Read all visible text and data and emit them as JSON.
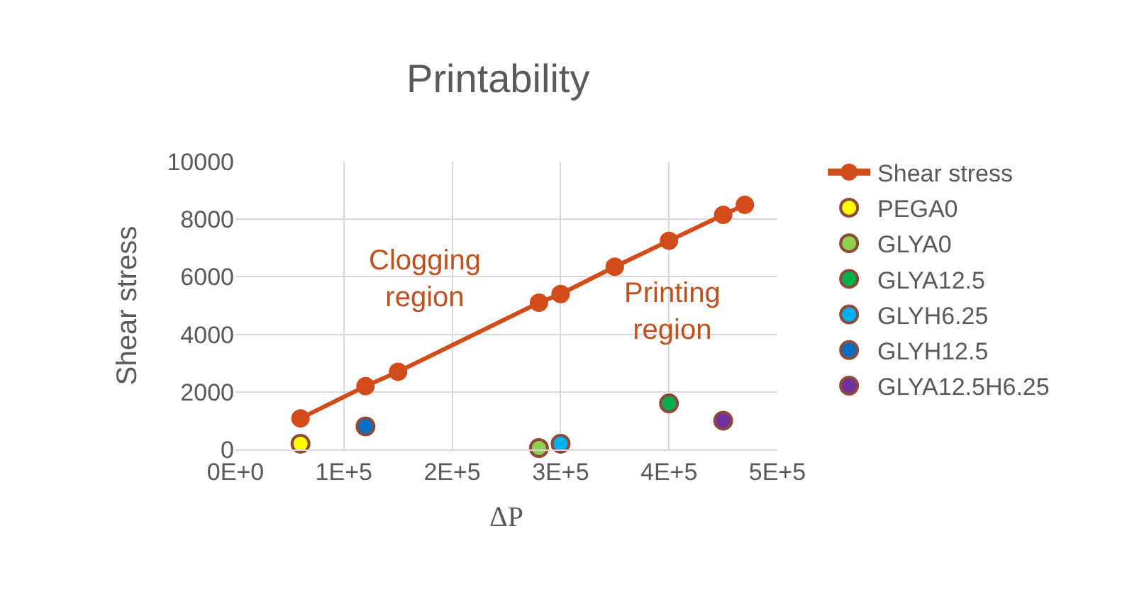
{
  "chart_data": {
    "type": "scatter",
    "title": "Printability",
    "xlabel": "ΔP",
    "ylabel": "Shear stress",
    "xlim": [
      0,
      500000
    ],
    "xticks": [
      {
        "value": 0,
        "label": "0E+0"
      },
      {
        "value": 100000,
        "label": "1E+5"
      },
      {
        "value": 200000,
        "label": "2E+5"
      },
      {
        "value": 300000,
        "label": "3E+5"
      },
      {
        "value": 400000,
        "label": "4E+5"
      },
      {
        "value": 500000,
        "label": "5E+5"
      }
    ],
    "ylim": [
      0,
      10000
    ],
    "yticks": [
      0,
      2000,
      4000,
      6000,
      8000,
      10000
    ],
    "grid": true,
    "legend": "right",
    "marker": "circle",
    "series": [
      {
        "name": "Shear stress",
        "type": "line",
        "color": "#d24b1a",
        "x": [
          60000,
          120000,
          150000,
          280000,
          300000,
          350000,
          400000,
          450000,
          470000
        ],
        "values": [
          1080,
          2200,
          2700,
          5100,
          5400,
          6350,
          7250,
          8150,
          8500
        ]
      },
      {
        "name": "PEGA0",
        "color": "#ffff00",
        "x": [
          60000
        ],
        "values": [
          200
        ]
      },
      {
        "name": "GLYA0",
        "color": "#92d050",
        "x": [
          280000
        ],
        "values": [
          50
        ]
      },
      {
        "name": "GLYA12.5",
        "color": "#00b050",
        "x": [
          400000
        ],
        "values": [
          1600
        ]
      },
      {
        "name": "GLYH6.25",
        "color": "#00b0f0",
        "x": [
          300000
        ],
        "values": [
          200
        ]
      },
      {
        "name": "GLYH12.5",
        "color": "#0070c0",
        "x": [
          120000
        ],
        "values": [
          800
        ]
      },
      {
        "name": "GLYA12.5H6.25",
        "color": "#7030a0",
        "x": [
          450000
        ],
        "values": [
          1000
        ]
      }
    ],
    "annotations": [
      "Clogging\nregion",
      "Printing\nregion"
    ]
  }
}
